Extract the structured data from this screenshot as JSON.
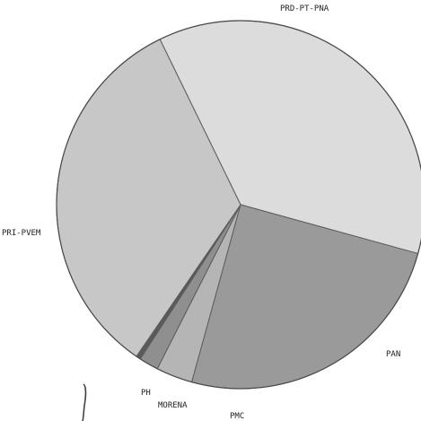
{
  "chart_data": {
    "type": "pie",
    "slices": [
      {
        "label": "PRD-PT-PNA",
        "value": 36.5,
        "color": "#dcdcdc"
      },
      {
        "label": "PAN",
        "value": 25.0,
        "color": "#9a9a9a"
      },
      {
        "label": "PMC",
        "value": 3.2,
        "color": "#b5b5b5"
      },
      {
        "label": "MORENA",
        "value": 1.7,
        "color": "#8f8f8f"
      },
      {
        "label": "PH",
        "value": 0.4,
        "color": "#5a5a5a"
      },
      {
        "label": "PRI-PVEM",
        "value": 33.2,
        "color": "#c7c7c7"
      }
    ],
    "legend": "none"
  }
}
